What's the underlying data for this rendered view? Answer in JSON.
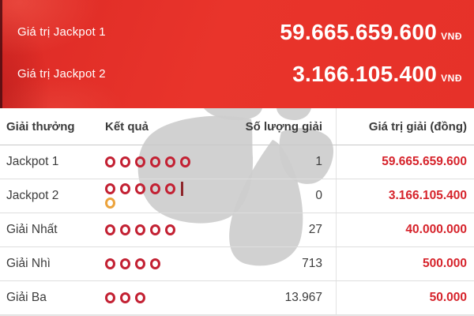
{
  "banner": {
    "rows": [
      {
        "label": "Giá trị Jackpot 1",
        "value": "59.665.659.600",
        "currency": "VNĐ"
      },
      {
        "label": "Giá trị Jackpot 2",
        "value": "3.166.105.400",
        "currency": "VNĐ"
      }
    ]
  },
  "table": {
    "headers": [
      "Giải thưởng",
      "Kết quả",
      "Số lượng giải",
      "Giá trị giải (đồng)"
    ],
    "rows": [
      {
        "prize": "Jackpot 1",
        "balls": 6,
        "bonus": false,
        "count": "1",
        "value": "59.665.659.600"
      },
      {
        "prize": "Jackpot 2",
        "balls": 5,
        "bonus": true,
        "count": "0",
        "value": "3.166.105.400"
      },
      {
        "prize": "Giải Nhất",
        "balls": 5,
        "bonus": false,
        "count": "27",
        "value": "40.000.000"
      },
      {
        "prize": "Giải Nhì",
        "balls": 4,
        "bonus": false,
        "count": "713",
        "value": "500.000"
      },
      {
        "prize": "Giải Ba",
        "balls": 3,
        "bonus": false,
        "count": "13.967",
        "value": "50.000"
      }
    ]
  },
  "icons": {
    "ball": "lottery-ball-ring",
    "bonus_ball": "bonus-ball-ring",
    "watermark": "vietlott-flower-logo"
  },
  "colors": {
    "banner_red": "#e63129",
    "ball_red": "#c32133",
    "bonus_orange": "#eca33c",
    "value_red": "#d6232b",
    "text_dark": "#3c3c3c",
    "watermark_gray": "#cdcdcd"
  }
}
